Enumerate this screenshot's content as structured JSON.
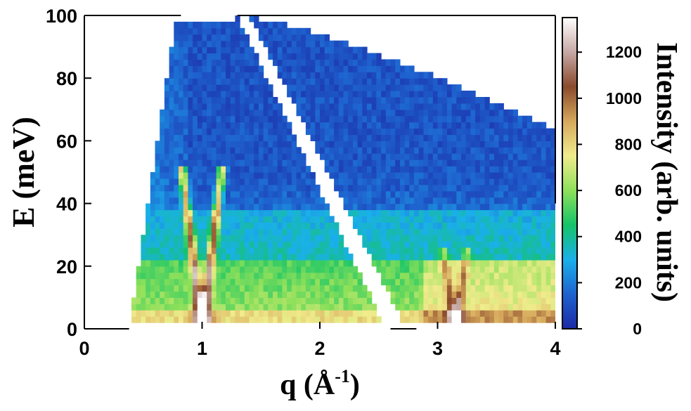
{
  "chart_data": {
    "type": "heatmap",
    "x_axis": {
      "label": "q (Å",
      "label_superscript": "-1",
      "label_suffix": ")",
      "range": [
        0,
        4
      ],
      "ticks": [
        "0",
        "1",
        "2",
        "3",
        "4"
      ]
    },
    "y_axis": {
      "label": "E (meV)",
      "range": [
        0,
        100
      ],
      "ticks": [
        "0",
        "20",
        "40",
        "60",
        "80",
        "100"
      ]
    },
    "colorbar": {
      "label": "Intensity (arb. units)",
      "range": [
        0,
        1350
      ],
      "ticks": [
        "0",
        "200",
        "400",
        "600",
        "800",
        "1000",
        "1200"
      ],
      "colors": [
        "#1c2aa6",
        "#1e63cf",
        "#1ab0ea",
        "#14c468",
        "#8ee05a",
        "#f0ec8c",
        "#d6a85c",
        "#8a4a2c",
        "#c6a8a4",
        "#ffffff"
      ]
    },
    "features": {
      "kinematic_upper_E_max_meV": 100,
      "flat_band_edge_E_meV": 38,
      "low_q_cutoff_q": 0.38,
      "high_q_cutoff_q": 4.0,
      "v_dispersion_centers_q": [
        1.0,
        3.15
      ],
      "v_dispersion_top_E_meV": [
        48,
        22
      ],
      "excluded_diagonal_strip": [
        [
          1.35,
          100
        ],
        [
          2.65,
          0
        ]
      ]
    }
  }
}
